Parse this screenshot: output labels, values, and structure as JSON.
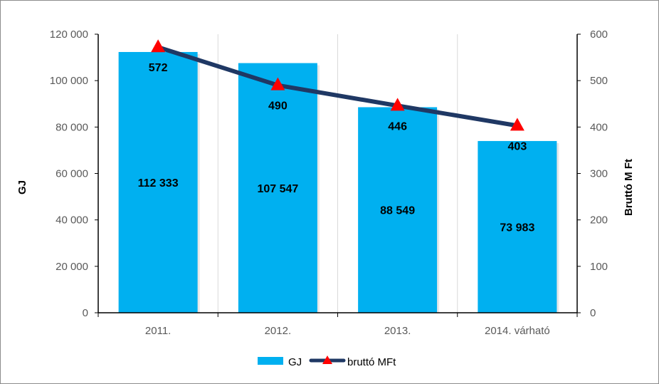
{
  "chart_data": {
    "type": "bar",
    "combo": "bar-line",
    "categories": [
      "2011.",
      "2012.",
      "2013.",
      "2014. várható"
    ],
    "series": [
      {
        "name": "GJ",
        "kind": "bar",
        "axis": "left",
        "values": [
          112333,
          107547,
          88549,
          73983
        ],
        "value_labels": [
          "112 333",
          "107 547",
          "88 549",
          "73 983"
        ],
        "color": "#00B0F0"
      },
      {
        "name": "bruttó MFt",
        "kind": "line",
        "axis": "right",
        "values": [
          572,
          490,
          446,
          403
        ],
        "value_labels": [
          "572",
          "490",
          "446",
          "403"
        ],
        "color": "#1F3864",
        "marker_color": "#FF0000",
        "marker": "triangle"
      }
    ],
    "y_left": {
      "label": "GJ",
      "lim": [
        0,
        120000
      ],
      "ticks": [
        0,
        20000,
        40000,
        60000,
        80000,
        100000,
        120000
      ],
      "tick_labels": [
        "0",
        "20 000",
        "40 000",
        "60 000",
        "80 000",
        "100 000",
        "120 000"
      ]
    },
    "y_right": {
      "label": "Bruttó M Ft",
      "lim": [
        0,
        600
      ],
      "ticks": [
        0,
        100,
        200,
        300,
        400,
        500,
        600
      ],
      "tick_labels": [
        "0",
        "100",
        "200",
        "300",
        "400",
        "500",
        "600"
      ]
    },
    "grid": "vertical-category-dividers",
    "legend_position": "bottom",
    "legend": [
      "GJ",
      "bruttó MFt"
    ]
  }
}
